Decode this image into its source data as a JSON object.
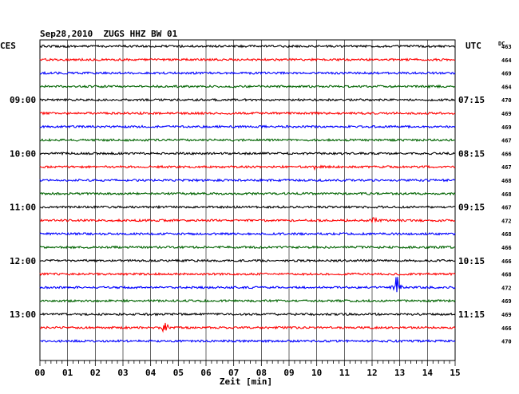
{
  "chart_data": {
    "type": "line",
    "title": "Sep28,2010  ZUGS HHZ BW 01",
    "left_timezone": "CES",
    "right_timezone": "UTC",
    "dc_header": "DC",
    "xlabel": "Zeit [min]",
    "ylabel": "",
    "xlim": [
      0,
      15
    ],
    "x_ticks": [
      "00",
      "01",
      "02",
      "03",
      "04",
      "05",
      "06",
      "07",
      "08",
      "09",
      "10",
      "11",
      "12",
      "13",
      "14",
      "15"
    ],
    "grid": true,
    "trace_colors": [
      "#000000",
      "#ff0000",
      "#0000ff",
      "#006400"
    ],
    "hour_labels_left": [
      {
        "trace": 4,
        "text": "09:00"
      },
      {
        "trace": 8,
        "text": "10:00"
      },
      {
        "trace": 12,
        "text": "11:00"
      },
      {
        "trace": 16,
        "text": "12:00"
      },
      {
        "trace": 20,
        "text": "13:00"
      }
    ],
    "hour_labels_right": [
      {
        "trace": 4,
        "text": "07:15"
      },
      {
        "trace": 8,
        "text": "08:15"
      },
      {
        "trace": 12,
        "text": "09:15"
      },
      {
        "trace": 16,
        "text": "10:15"
      },
      {
        "trace": 20,
        "text": "11:15"
      }
    ],
    "dc_values": [
      "463",
      "464",
      "469",
      "464",
      "470",
      "469",
      "469",
      "467",
      "466",
      "467",
      "468",
      "468",
      "467",
      "472",
      "468",
      "466",
      "466",
      "468",
      "472",
      "469",
      "469",
      "466",
      "470"
    ],
    "events": [
      {
        "trace": 21,
        "x_min": 4.5,
        "amplitude": 6
      },
      {
        "trace": 18,
        "x_min": 12.9,
        "amplitude": 14
      },
      {
        "trace": 9,
        "x_min": 10.0,
        "amplitude": 3
      },
      {
        "trace": 13,
        "x_min": 12.1,
        "amplitude": 3
      }
    ]
  }
}
